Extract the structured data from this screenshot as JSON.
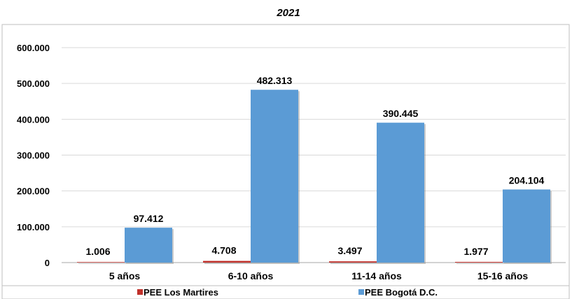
{
  "chart_data": {
    "type": "bar",
    "title": "2021",
    "categories": [
      "5 años",
      "6-10 años",
      "11-14 años",
      "15-16 años"
    ],
    "series": [
      {
        "name": "PEE Los Martires",
        "values": [
          1006,
          4708,
          3497,
          1977
        ],
        "labels": [
          "1.006",
          "4.708",
          "3.497",
          "1.977"
        ],
        "color": "#c0312b"
      },
      {
        "name": "PEE Bogotá D.C.",
        "values": [
          97412,
          482313,
          390445,
          204104
        ],
        "labels": [
          "97.412",
          "482.313",
          "390.445",
          "204.104"
        ],
        "color": "#5b9bd5"
      }
    ],
    "yticks": [
      0,
      100000,
      200000,
      300000,
      400000,
      500000,
      600000
    ],
    "ytick_labels": [
      "0",
      "100.000",
      "200.000",
      "300.000",
      "400.000",
      "500.000",
      "600.000"
    ],
    "ylim": [
      0,
      600000
    ],
    "grid": true,
    "legend_position": "bottom"
  }
}
